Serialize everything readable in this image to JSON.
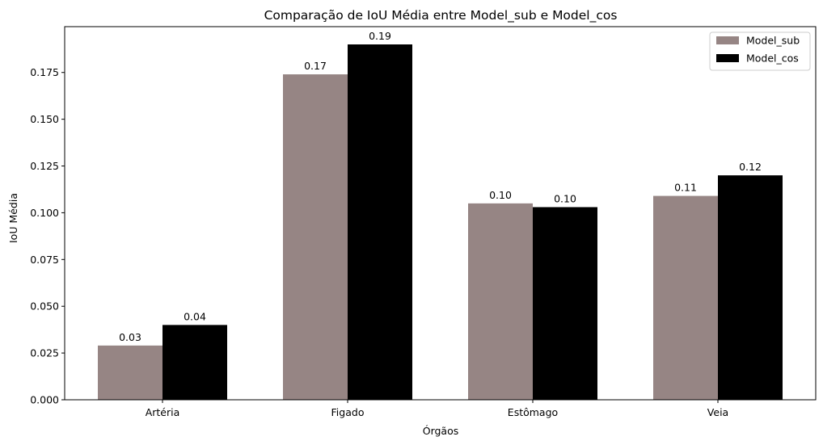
{
  "chart_data": {
    "type": "bar",
    "title": "Comparação de IoU Média entre Model_sub e Model_cos",
    "xlabel": "Órgãos",
    "ylabel": "IoU Média",
    "categories": [
      "Artéria",
      "Figado",
      "Estômago",
      "Veia"
    ],
    "series": [
      {
        "name": "Model_sub",
        "color": "#968584",
        "values": [
          0.029,
          0.174,
          0.105,
          0.109
        ],
        "labels": [
          "0.03",
          "0.17",
          "0.10",
          "0.11"
        ]
      },
      {
        "name": "Model_cos",
        "color": "#000000",
        "values": [
          0.04,
          0.19,
          0.103,
          0.12
        ],
        "labels": [
          "0.04",
          "0.19",
          "0.10",
          "0.12"
        ]
      }
    ],
    "ylim": [
      0,
      0.1995
    ],
    "yticks": [
      0.0,
      0.025,
      0.05,
      0.075,
      0.1,
      0.125,
      0.15,
      0.175
    ],
    "ytick_labels": [
      "0.000",
      "0.025",
      "0.050",
      "0.075",
      "0.100",
      "0.125",
      "0.150",
      "0.175"
    ],
    "grid": false,
    "legend_position": "top-right"
  }
}
